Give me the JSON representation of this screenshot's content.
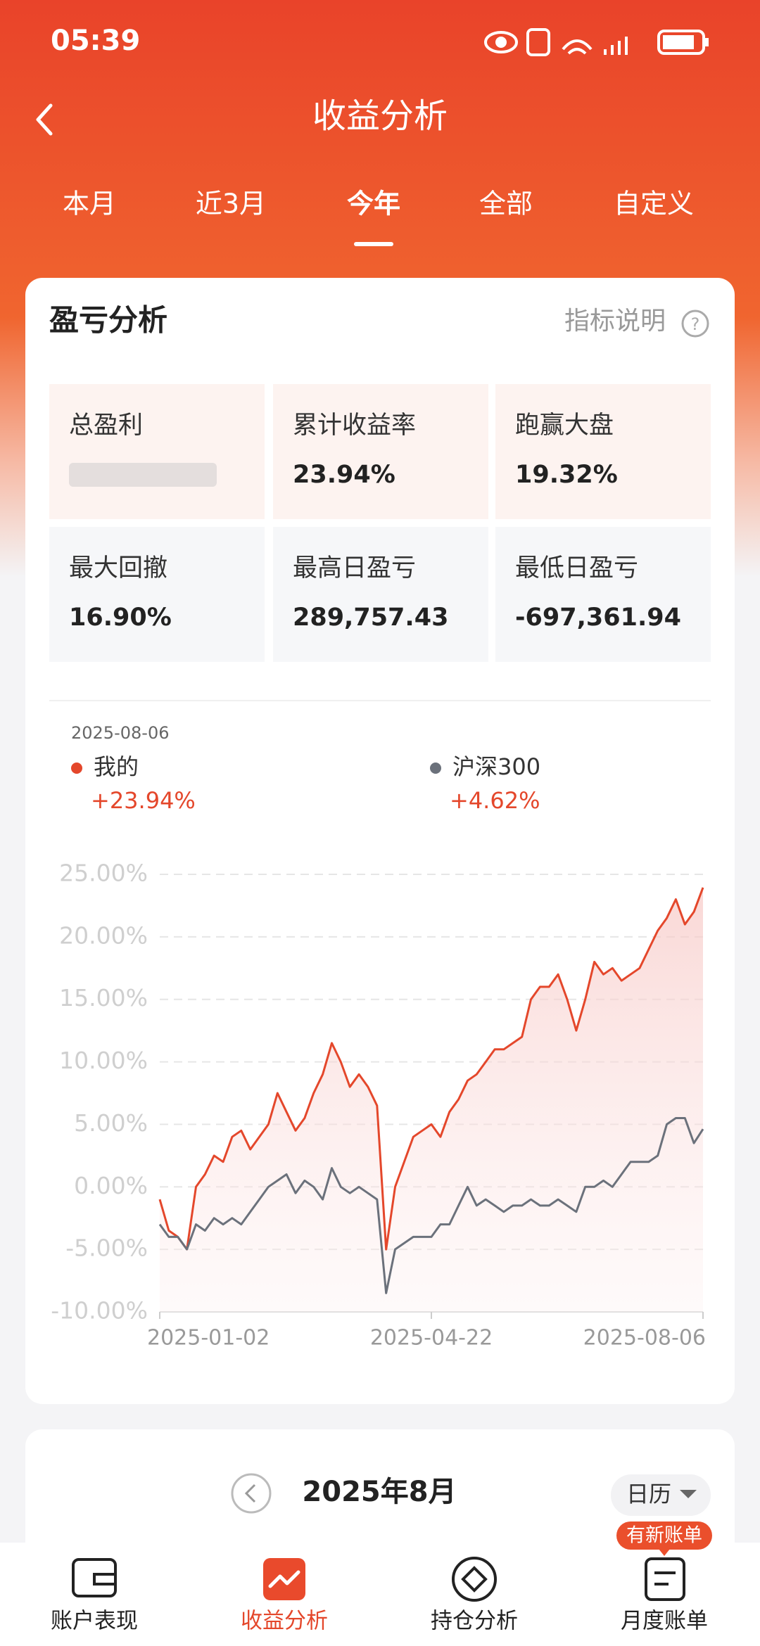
{
  "status_bar": {
    "time": "05:39"
  },
  "header": {
    "title": "收益分析"
  },
  "tabs": {
    "items": [
      "本月",
      "近3月",
      "今年",
      "全部",
      "自定义"
    ],
    "active": 2
  },
  "card": {
    "title": "盈亏分析",
    "help": "指标说明",
    "metrics": [
      {
        "label": "总盈利"
      },
      {
        "label": "累计收益率",
        "value": "23.94%"
      },
      {
        "label": "跑赢大盘",
        "value": "19.32%"
      },
      {
        "label": "最大回撤",
        "value": "16.90%"
      },
      {
        "label": "最高日盈亏",
        "value": "289,757.43"
      },
      {
        "label": "最低日盈亏",
        "value": "-697,361.94"
      }
    ]
  },
  "chart_data": {
    "type": "line",
    "date": "2025-08-06",
    "categories": [
      "2025-01-02",
      null,
      null,
      null,
      null,
      null,
      null,
      null,
      null,
      null,
      null,
      null,
      null,
      null,
      null,
      null,
      null,
      null,
      null,
      null,
      null,
      null,
      null,
      null,
      null,
      null,
      null,
      null,
      null,
      null,
      "2025-04-22",
      null,
      null,
      null,
      null,
      null,
      null,
      null,
      null,
      null,
      null,
      null,
      null,
      null,
      null,
      null,
      null,
      null,
      null,
      null,
      null,
      null,
      null,
      null,
      null,
      null,
      null,
      null,
      null,
      null,
      "2025-08-06"
    ],
    "series": [
      {
        "name": "我的",
        "color": "#e4472b",
        "legend_value": "+23.94%",
        "values": [
          -1,
          -3.5,
          -4,
          -5,
          0,
          1,
          2.5,
          2,
          4,
          4.5,
          3,
          4,
          5,
          7.5,
          6,
          4.5,
          5.5,
          7.5,
          9,
          11.5,
          10,
          8,
          9,
          8,
          6.5,
          -5,
          0,
          2,
          4,
          4.5,
          5,
          4,
          6,
          7,
          8.5,
          9,
          10,
          11,
          11,
          11.5,
          12,
          15,
          16,
          16,
          17,
          15,
          12.5,
          15,
          18,
          17,
          17.5,
          16.5,
          17,
          17.5,
          19,
          20.5,
          21.5,
          23,
          21,
          22,
          23.94
        ]
      },
      {
        "name": "沪深300",
        "color": "#6b717b",
        "legend_value": "+4.62%",
        "values": [
          -3,
          -4,
          -4,
          -5,
          -3,
          -3.5,
          -2.5,
          -3,
          -2.5,
          -3,
          -2,
          -1,
          0,
          0.5,
          1,
          -0.5,
          0.5,
          0,
          -1,
          1.5,
          0,
          -0.5,
          0,
          -0.5,
          -1,
          -8.5,
          -5,
          -4.5,
          -4,
          -4,
          -4,
          -3,
          -3,
          -1.5,
          0,
          -1.5,
          -1,
          -1.5,
          -2,
          -1.5,
          -1.5,
          -1,
          -1.5,
          -1.5,
          -1,
          -1.5,
          -2,
          0,
          0,
          0.5,
          0,
          1,
          2,
          2,
          2,
          2.5,
          5,
          5.5,
          5.5,
          3.5,
          4.62
        ]
      }
    ],
    "ylim": [
      -10,
      25
    ],
    "yticks": [
      {
        "value": -10,
        "label": "-10.00%"
      },
      {
        "value": -5,
        "label": "-5.00%"
      },
      {
        "value": 0,
        "label": "0.00%"
      },
      {
        "value": 5,
        "label": "5.00%"
      },
      {
        "value": 10,
        "label": "10.00%"
      },
      {
        "value": 15,
        "label": "15.00%"
      },
      {
        "value": 20,
        "label": "20.00%"
      },
      {
        "value": 25,
        "label": "25.00%"
      }
    ],
    "grid": true
  },
  "calendar": {
    "month": "2025年8月",
    "view": "日历"
  },
  "nav": {
    "items": [
      "账户表现",
      "收益分析",
      "持仓分析",
      "月度账单"
    ],
    "active": 1,
    "badge": "有新账单"
  }
}
